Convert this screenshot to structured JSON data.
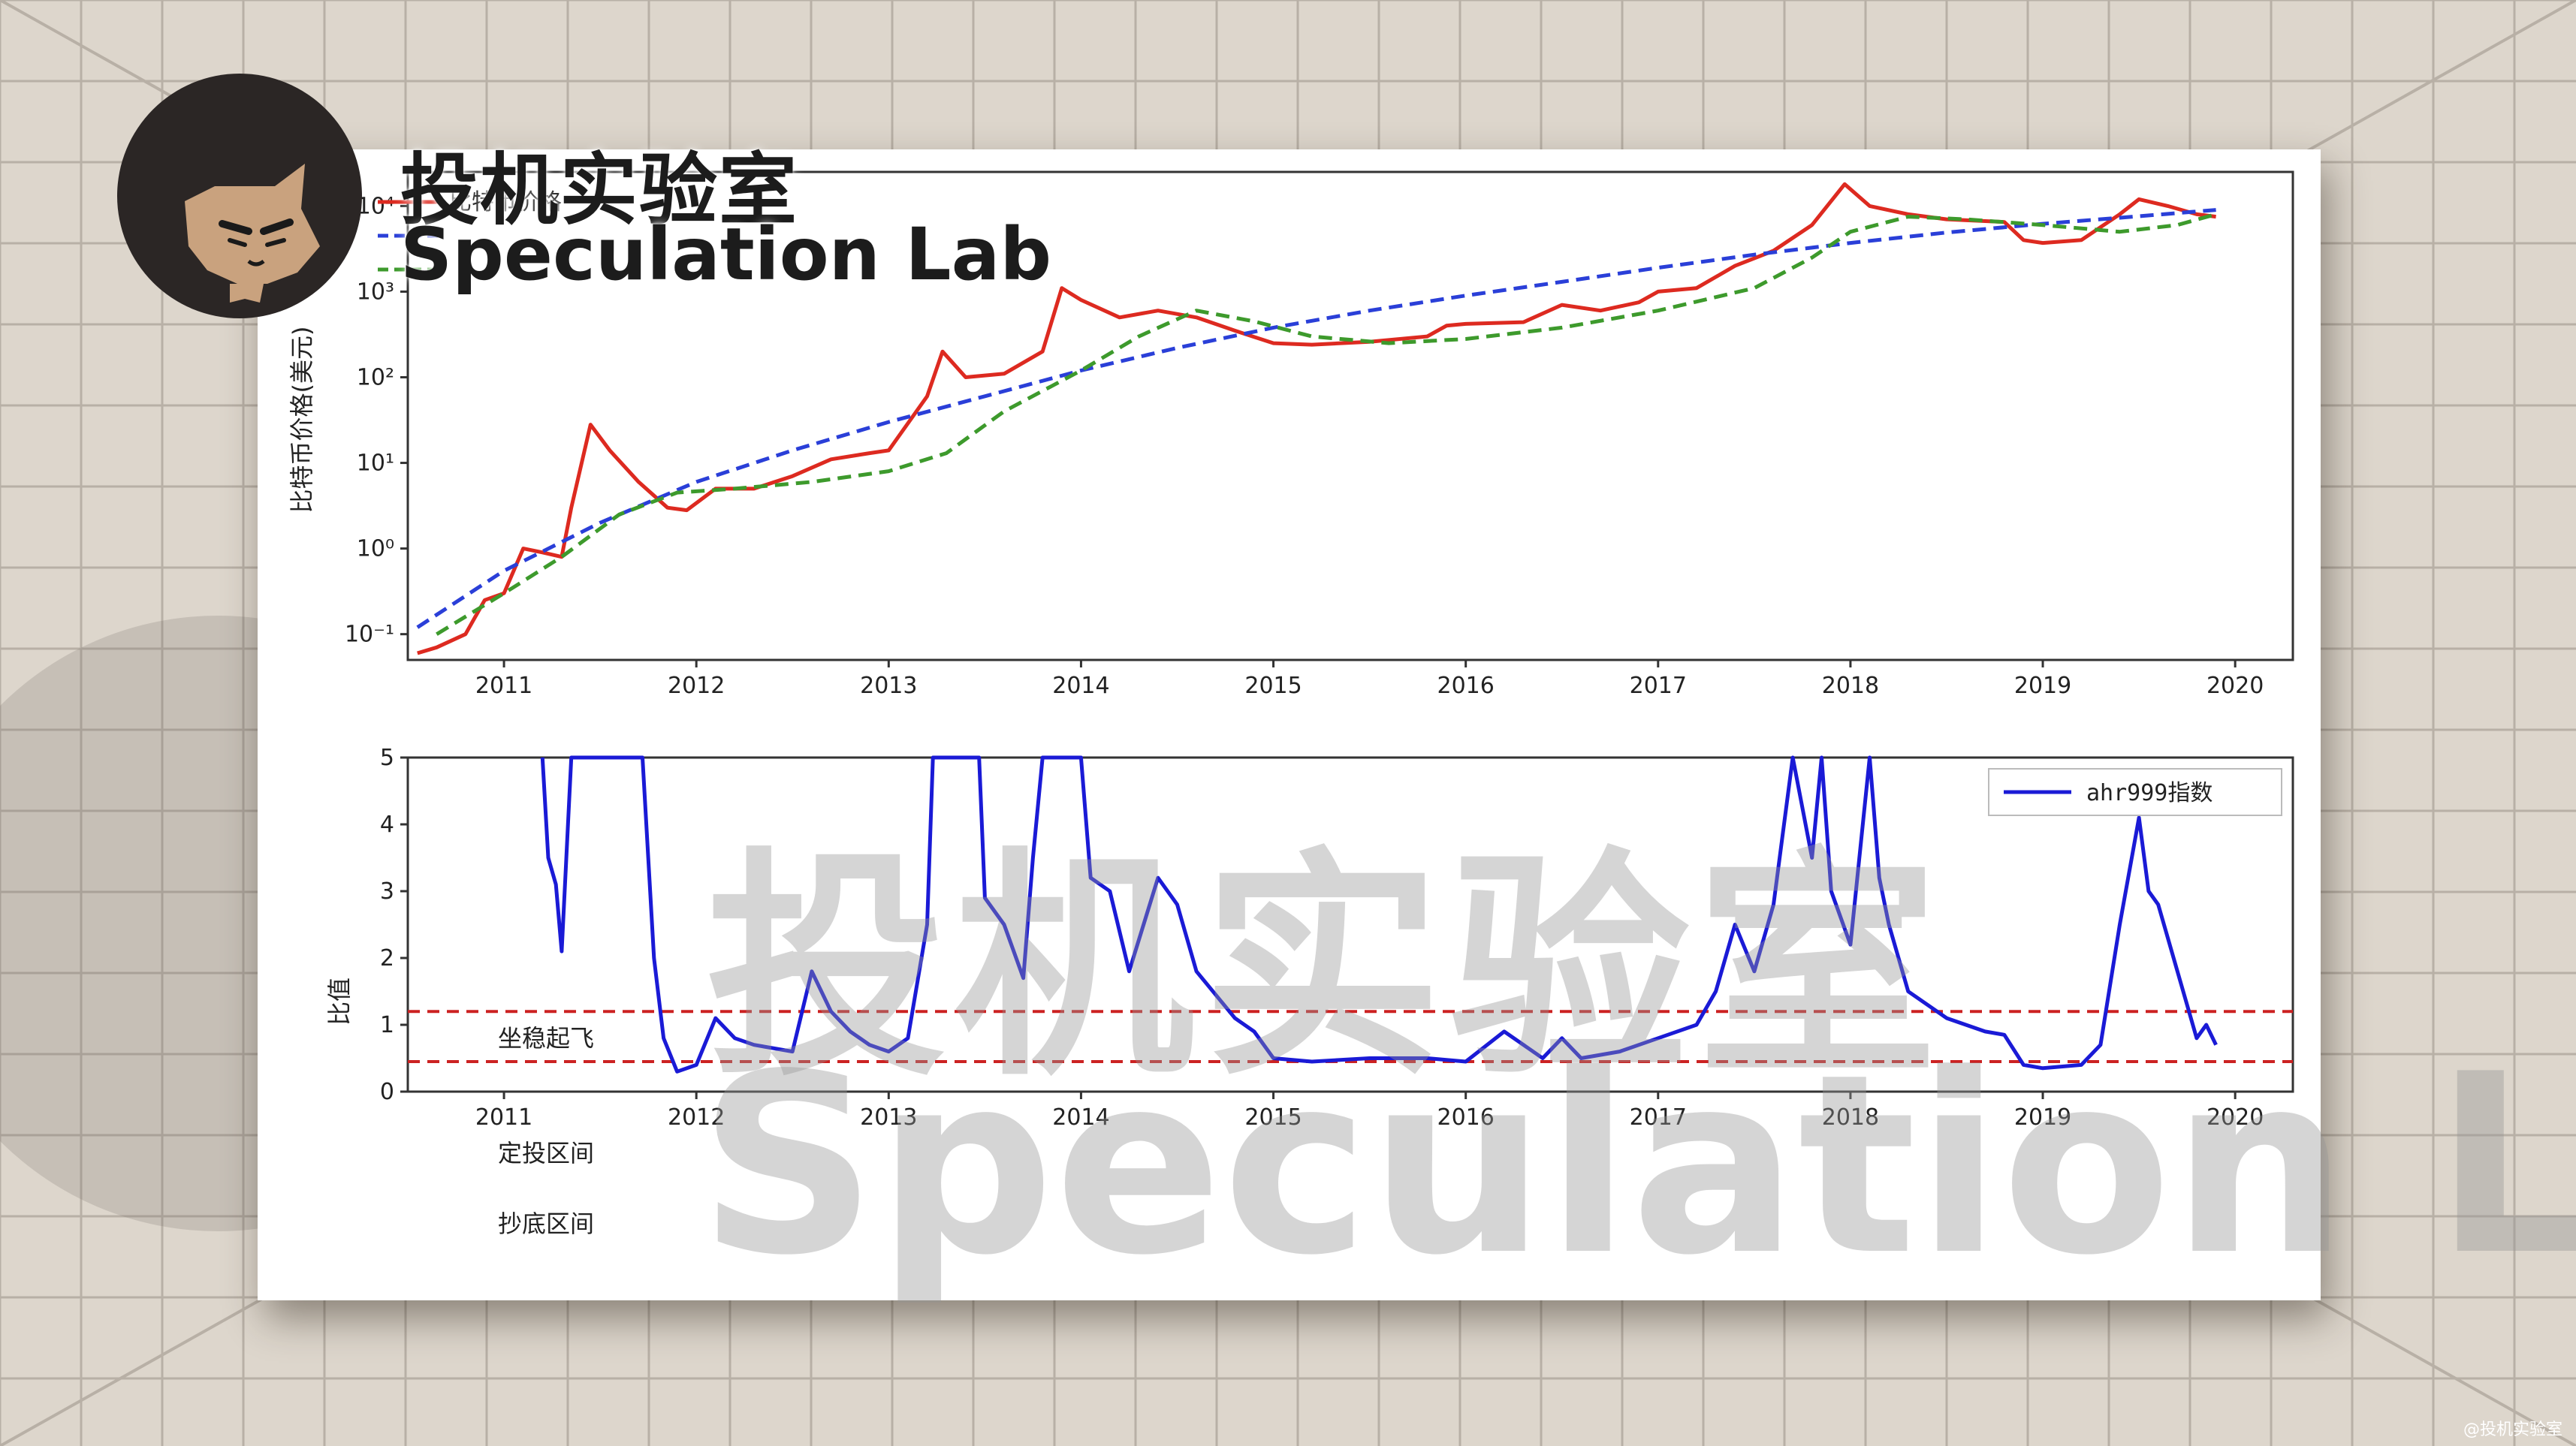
{
  "brand": {
    "name_cn": "投机实验室",
    "name_en": "Speculation Lab",
    "corner_tag": "@投机实验室"
  },
  "colors": {
    "price": "#dd2a20",
    "fit_blue": "#2a3fd8",
    "cost_green": "#3d9a2c",
    "index_blue": "#1a1ad6",
    "threshold": "#cc2222"
  },
  "chart_data": [
    {
      "type": "line",
      "y_scale": "log",
      "ylabel": "比特币价格(美元)",
      "ylim": [
        0.05,
        25000
      ],
      "y_ticks": [
        "10⁻¹",
        "10⁰",
        "10¹",
        "10²",
        "10³",
        "10⁴"
      ],
      "x_ticks": [
        "2011",
        "2012",
        "2013",
        "2014",
        "2015",
        "2016",
        "2017",
        "2018",
        "2019",
        "2020"
      ],
      "xlim": [
        2010.5,
        2020.3
      ],
      "legend": {
        "position": "top-left"
      },
      "series": [
        {
          "name": "比特币价格",
          "color": "#dd2a20",
          "style": "solid",
          "points": [
            [
              2010.55,
              0.06
            ],
            [
              2010.65,
              0.07
            ],
            [
              2010.8,
              0.1
            ],
            [
              2010.9,
              0.25
            ],
            [
              2011.0,
              0.3
            ],
            [
              2011.1,
              1.0
            ],
            [
              2011.2,
              0.9
            ],
            [
              2011.3,
              0.8
            ],
            [
              2011.35,
              3.0
            ],
            [
              2011.45,
              28
            ],
            [
              2011.55,
              14
            ],
            [
              2011.7,
              6
            ],
            [
              2011.85,
              3
            ],
            [
              2011.95,
              2.8
            ],
            [
              2012.1,
              5
            ],
            [
              2012.3,
              5
            ],
            [
              2012.5,
              7
            ],
            [
              2012.7,
              11
            ],
            [
              2012.9,
              13
            ],
            [
              2013.0,
              14
            ],
            [
              2013.2,
              60
            ],
            [
              2013.28,
              200
            ],
            [
              2013.4,
              100
            ],
            [
              2013.6,
              110
            ],
            [
              2013.8,
              200
            ],
            [
              2013.9,
              1100
            ],
            [
              2014.0,
              800
            ],
            [
              2014.2,
              500
            ],
            [
              2014.4,
              600
            ],
            [
              2014.6,
              500
            ],
            [
              2014.8,
              350
            ],
            [
              2015.0,
              250
            ],
            [
              2015.2,
              240
            ],
            [
              2015.5,
              260
            ],
            [
              2015.8,
              300
            ],
            [
              2015.9,
              400
            ],
            [
              2016.0,
              420
            ],
            [
              2016.3,
              440
            ],
            [
              2016.5,
              700
            ],
            [
              2016.7,
              600
            ],
            [
              2016.9,
              750
            ],
            [
              2017.0,
              1000
            ],
            [
              2017.2,
              1100
            ],
            [
              2017.4,
              2000
            ],
            [
              2017.6,
              3000
            ],
            [
              2017.8,
              6000
            ],
            [
              2017.97,
              18000
            ],
            [
              2018.1,
              10000
            ],
            [
              2018.3,
              8000
            ],
            [
              2018.5,
              7000
            ],
            [
              2018.8,
              6500
            ],
            [
              2018.9,
              4000
            ],
            [
              2019.0,
              3700
            ],
            [
              2019.2,
              4000
            ],
            [
              2019.4,
              8000
            ],
            [
              2019.5,
              12000
            ],
            [
              2019.65,
              10000
            ],
            [
              2019.8,
              8000
            ],
            [
              2019.9,
              7500
            ]
          ]
        },
        {
          "name": "",
          "color": "#2a3fd8",
          "style": "dashed",
          "points": [
            [
              2010.55,
              0.12
            ],
            [
              2011.0,
              0.55
            ],
            [
              2011.5,
              2.0
            ],
            [
              2012.0,
              6
            ],
            [
              2012.5,
              14
            ],
            [
              2013.0,
              30
            ],
            [
              2013.5,
              60
            ],
            [
              2014.0,
              120
            ],
            [
              2014.5,
              220
            ],
            [
              2015.0,
              380
            ],
            [
              2015.5,
              600
            ],
            [
              2016.0,
              900
            ],
            [
              2016.5,
              1300
            ],
            [
              2017.0,
              1900
            ],
            [
              2017.5,
              2700
            ],
            [
              2018.0,
              3700
            ],
            [
              2018.5,
              4900
            ],
            [
              2019.0,
              6200
            ],
            [
              2019.5,
              7600
            ],
            [
              2019.9,
              9000
            ]
          ]
        },
        {
          "name": "",
          "color": "#3d9a2c",
          "style": "dashed",
          "points": [
            [
              2010.65,
              0.1
            ],
            [
              2011.0,
              0.3
            ],
            [
              2011.3,
              0.8
            ],
            [
              2011.6,
              2.5
            ],
            [
              2011.9,
              4.5
            ],
            [
              2012.2,
              5
            ],
            [
              2012.6,
              6
            ],
            [
              2013.0,
              8
            ],
            [
              2013.3,
              13
            ],
            [
              2013.6,
              40
            ],
            [
              2014.0,
              120
            ],
            [
              2014.3,
              300
            ],
            [
              2014.6,
              600
            ],
            [
              2014.9,
              450
            ],
            [
              2015.2,
              300
            ],
            [
              2015.6,
              250
            ],
            [
              2016.0,
              280
            ],
            [
              2016.5,
              380
            ],
            [
              2017.0,
              600
            ],
            [
              2017.5,
              1100
            ],
            [
              2017.8,
              2500
            ],
            [
              2018.0,
              5000
            ],
            [
              2018.3,
              7500
            ],
            [
              2018.6,
              7000
            ],
            [
              2019.0,
              6000
            ],
            [
              2019.4,
              5000
            ],
            [
              2019.7,
              6000
            ],
            [
              2019.9,
              8000
            ]
          ]
        }
      ]
    },
    {
      "type": "line",
      "ylabel": "比值",
      "ylim": [
        0,
        5
      ],
      "y_ticks": [
        "0",
        "1",
        "2",
        "3",
        "4",
        "5"
      ],
      "x_ticks": [
        "2011",
        "2012",
        "2013",
        "2014",
        "2015",
        "2016",
        "2017",
        "2018",
        "2019",
        "2020"
      ],
      "xlim": [
        2010.5,
        2020.3
      ],
      "legend": {
        "position": "top-right"
      },
      "thresholds": [
        1.2,
        0.45
      ],
      "zone_labels": [
        "坐稳起飞",
        "定投区间",
        "抄底区间"
      ],
      "series": [
        {
          "name": "ahr999指数",
          "color": "#1a1ad6",
          "style": "solid",
          "points": [
            [
              2011.2,
              5.0
            ],
            [
              2011.23,
              3.5
            ],
            [
              2011.27,
              3.1
            ],
            [
              2011.3,
              2.1
            ],
            [
              2011.35,
              5.0
            ],
            [
              2011.72,
              5.0
            ],
            [
              2011.78,
              2.0
            ],
            [
              2011.83,
              0.8
            ],
            [
              2011.9,
              0.3
            ],
            [
              2012.0,
              0.4
            ],
            [
              2012.1,
              1.1
            ],
            [
              2012.2,
              0.8
            ],
            [
              2012.3,
              0.7
            ],
            [
              2012.5,
              0.6
            ],
            [
              2012.6,
              1.8
            ],
            [
              2012.7,
              1.2
            ],
            [
              2012.8,
              0.9
            ],
            [
              2012.9,
              0.7
            ],
            [
              2013.0,
              0.6
            ],
            [
              2013.1,
              0.8
            ],
            [
              2013.2,
              2.5
            ],
            [
              2013.23,
              5.0
            ],
            [
              2013.47,
              5.0
            ],
            [
              2013.5,
              2.9
            ],
            [
              2013.6,
              2.5
            ],
            [
              2013.7,
              1.7
            ],
            [
              2013.75,
              3.5
            ],
            [
              2013.8,
              5.0
            ],
            [
              2014.0,
              5.0
            ],
            [
              2014.05,
              3.2
            ],
            [
              2014.15,
              3.0
            ],
            [
              2014.25,
              1.8
            ],
            [
              2014.4,
              3.2
            ],
            [
              2014.5,
              2.8
            ],
            [
              2014.6,
              1.8
            ],
            [
              2014.8,
              1.1
            ],
            [
              2014.9,
              0.9
            ],
            [
              2015.0,
              0.5
            ],
            [
              2015.2,
              0.45
            ],
            [
              2015.5,
              0.5
            ],
            [
              2015.8,
              0.5
            ],
            [
              2016.0,
              0.45
            ],
            [
              2016.2,
              0.9
            ],
            [
              2016.4,
              0.5
            ],
            [
              2016.5,
              0.8
            ],
            [
              2016.6,
              0.5
            ],
            [
              2016.8,
              0.6
            ],
            [
              2017.0,
              0.8
            ],
            [
              2017.2,
              1.0
            ],
            [
              2017.3,
              1.5
            ],
            [
              2017.4,
              2.5
            ],
            [
              2017.5,
              1.8
            ],
            [
              2017.6,
              2.8
            ],
            [
              2017.7,
              5.0
            ],
            [
              2017.8,
              3.5
            ],
            [
              2017.85,
              5.0
            ],
            [
              2017.9,
              3.0
            ],
            [
              2018.0,
              2.2
            ],
            [
              2018.1,
              5.0
            ],
            [
              2018.15,
              3.2
            ],
            [
              2018.2,
              2.5
            ],
            [
              2018.3,
              1.5
            ],
            [
              2018.5,
              1.1
            ],
            [
              2018.7,
              0.9
            ],
            [
              2018.8,
              0.85
            ],
            [
              2018.9,
              0.4
            ],
            [
              2019.0,
              0.35
            ],
            [
              2019.2,
              0.4
            ],
            [
              2019.3,
              0.7
            ],
            [
              2019.4,
              2.5
            ],
            [
              2019.5,
              4.1
            ],
            [
              2019.55,
              3.0
            ],
            [
              2019.6,
              2.8
            ],
            [
              2019.7,
              1.8
            ],
            [
              2019.8,
              0.8
            ],
            [
              2019.85,
              1.0
            ],
            [
              2019.9,
              0.7
            ]
          ]
        }
      ]
    }
  ]
}
